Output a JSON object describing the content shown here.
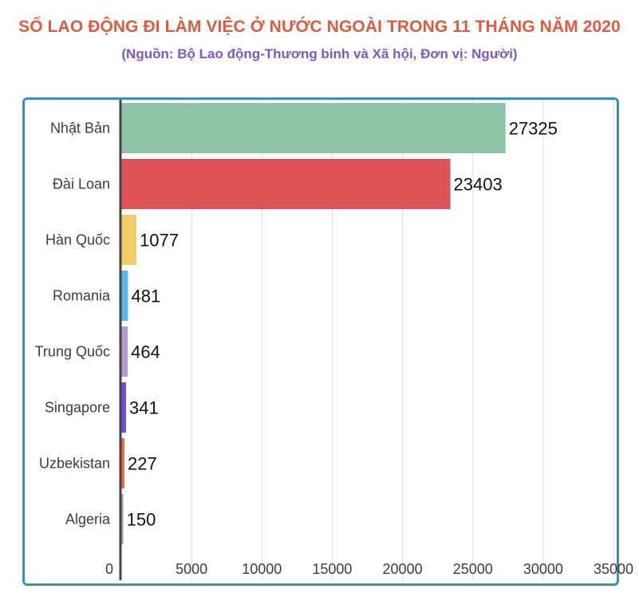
{
  "chart_data": {
    "type": "bar",
    "orientation": "horizontal",
    "title": "SỐ LAO ĐỘNG ĐI LÀM VIỆC Ở NƯỚC NGOÀI TRONG 11 THÁNG NĂM 2020",
    "subtitle": "(Nguồn:  Bộ Lao động-Thương binh và Xã hội, Đơn vị: Người)",
    "categories": [
      "Nhật Bản",
      "Đài Loan",
      "Hàn Quốc",
      "Romania",
      "Trung Quốc",
      "Singapore",
      "Uzbekistan",
      "Algeria"
    ],
    "values": [
      27325,
      23403,
      1077,
      481,
      464,
      341,
      227,
      150
    ],
    "colors": [
      "#8fc4a8",
      "#dd5358",
      "#f0cc6a",
      "#5ab4e6",
      "#b39bd0",
      "#6a4fd8",
      "#ee6b48",
      "#a6a6a6"
    ],
    "xlim": [
      0,
      35000
    ],
    "xticks": [
      0,
      5000,
      10000,
      15000,
      20000,
      25000,
      30000,
      35000
    ],
    "grid": true,
    "xlabel": "",
    "ylabel": ""
  },
  "colors": {
    "title": "#e05a3b",
    "subtitle": "#7b57c9",
    "frame": "#3a93b6",
    "grid": "#dcdcdc",
    "axis": "#444444"
  }
}
